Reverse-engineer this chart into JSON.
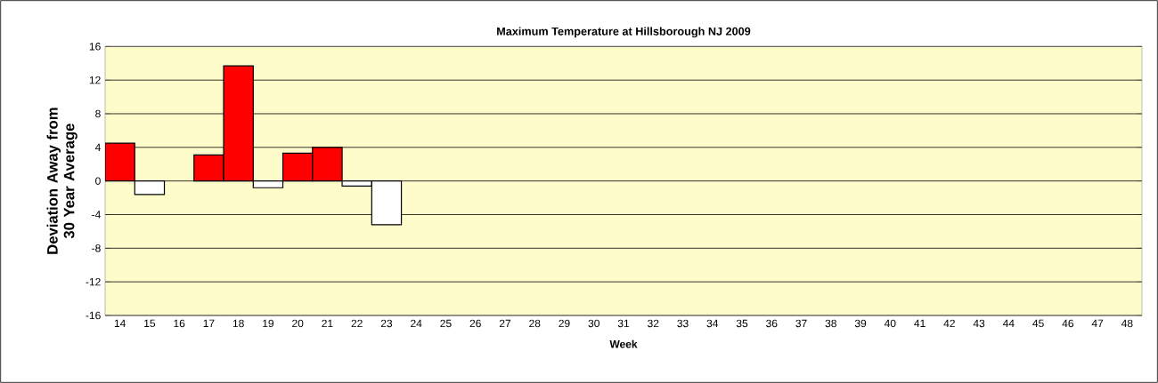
{
  "chart_data": {
    "type": "bar",
    "title": "Maximum Temperature at Hillsborough NJ 2009",
    "xlabel": "Week",
    "ylabel": "Deviation Away from 30 Year Average",
    "categories": [
      "14",
      "15",
      "16",
      "17",
      "18",
      "19",
      "20",
      "21",
      "22",
      "23",
      "24",
      "25",
      "26",
      "27",
      "28",
      "29",
      "30",
      "31",
      "32",
      "33",
      "34",
      "35",
      "36",
      "37",
      "38",
      "39",
      "40",
      "41",
      "42",
      "43",
      "44",
      "45",
      "46",
      "47",
      "48"
    ],
    "values": [
      4.5,
      -1.6,
      null,
      3.1,
      13.7,
      -0.8,
      3.3,
      4.0,
      -0.6,
      -5.2,
      null,
      null,
      null,
      null,
      null,
      null,
      null,
      null,
      null,
      null,
      null,
      null,
      null,
      null,
      null,
      null,
      null,
      null,
      null,
      null,
      null,
      null,
      null,
      null,
      null
    ],
    "colors": [
      "#ff0000",
      "#ffffff",
      null,
      "#ff0000",
      "#ff0000",
      "#ffffff",
      "#ff0000",
      "#ff0000",
      "#ffffff",
      "#ffffff",
      null,
      null,
      null,
      null,
      null,
      null,
      null,
      null,
      null,
      null,
      null,
      null,
      null,
      null,
      null,
      null,
      null,
      null,
      null,
      null,
      null,
      null,
      null,
      null,
      null
    ],
    "ylim": [
      -16,
      16
    ],
    "yticks": [
      -16,
      -12,
      -8,
      -4,
      0,
      4,
      8,
      12,
      16
    ],
    "grid": "y"
  }
}
